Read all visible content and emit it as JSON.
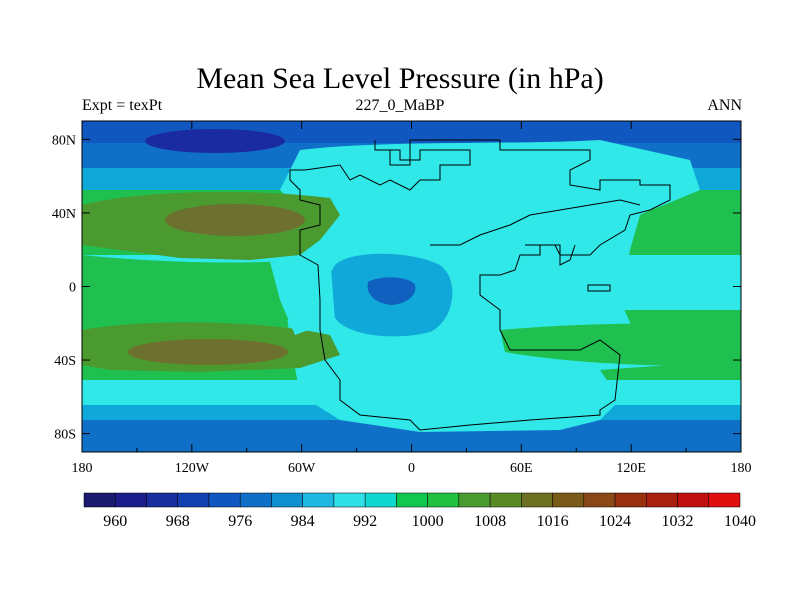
{
  "title": "Mean Sea Level Pressure (in hPa)",
  "subtitle_left": "Expt = texPt",
  "subtitle_center": "227_0_MaBP",
  "subtitle_right": "ANN",
  "map": {
    "lon_labels": [
      "180",
      "120W",
      "60W",
      "0",
      "60E",
      "120E",
      "180"
    ],
    "lat_labels": [
      "80N",
      "40N",
      "0",
      "40S",
      "80S"
    ],
    "lon_values": [
      -180,
      -120,
      -60,
      0,
      60,
      120,
      180
    ],
    "lat_values": [
      80,
      40,
      0,
      -40,
      -80
    ]
  },
  "colorbar": {
    "colors": [
      "#1a1a6e",
      "#1c1c8a",
      "#1a2ea0",
      "#1440b0",
      "#1058c0",
      "#1070c8",
      "#1090d0",
      "#20b8e0",
      "#30e0e8",
      "#10d8d0",
      "#10c850",
      "#20c040",
      "#4a9a30",
      "#5a8a28",
      "#6a7020",
      "#7a5a18",
      "#8a4818",
      "#983010",
      "#a82010",
      "#c01010",
      "#e01010"
    ],
    "labels": [
      "960",
      "968",
      "976",
      "984",
      "992",
      "1000",
      "1008",
      "1016",
      "1024",
      "1032",
      "1040"
    ]
  },
  "colors": {
    "deep_low": "#1a2aa0",
    "low": "#1060c0",
    "mid_low": "#10a0d8",
    "neutral": "#30e8e8",
    "high_green": "#20c050",
    "higher": "#4a9a30",
    "highest": "#6e7030",
    "coast": "#000000"
  }
}
